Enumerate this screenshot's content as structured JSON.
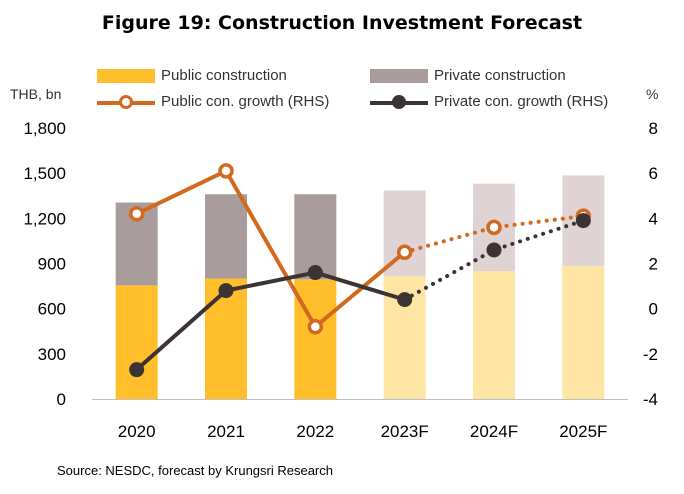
{
  "chart_data": {
    "type": "bar",
    "title": "Figure 19: Construction  Investment Forecast",
    "ylabel": "THB, bn",
    "y2label": "%",
    "categories": [
      "2020",
      "2021",
      "2022",
      "2023F",
      "2024F",
      "2025F"
    ],
    "forecast_from_index": 3,
    "ylim": [
      0,
      1800
    ],
    "yticks": [
      "0",
      "300",
      "600",
      "900",
      "1,200",
      "1,500",
      "1,800"
    ],
    "y2lim": [
      -4,
      8
    ],
    "y2ticks": [
      "-4",
      "-2",
      "0",
      "2",
      "4",
      "6",
      "8"
    ],
    "bar_series": [
      {
        "name": "Public construction",
        "values": [
          755,
          800,
          795,
          815,
          850,
          885
        ],
        "color": "#FFBE2A",
        "forecast_color": "#FFE5A3"
      },
      {
        "name": "Private construction",
        "values": [
          550,
          560,
          565,
          570,
          580,
          600
        ],
        "color": "#A99C9C",
        "forecast_color": "#E0D3D3"
      }
    ],
    "line_series": [
      {
        "name": "Public con. growth (RHS)",
        "values": [
          4.2,
          6.1,
          -0.8,
          2.5,
          3.6,
          4.1
        ],
        "color": "#D2691E",
        "marker": "hollow"
      },
      {
        "name": "Private con. growth (RHS)",
        "values": [
          -2.7,
          0.8,
          1.6,
          0.4,
          2.6,
          3.9
        ],
        "color": "#3C3434",
        "marker": "filled"
      }
    ],
    "legend_placement": "top",
    "grid": false,
    "source": "Source: NESDC, forecast by Krungsri Research"
  }
}
